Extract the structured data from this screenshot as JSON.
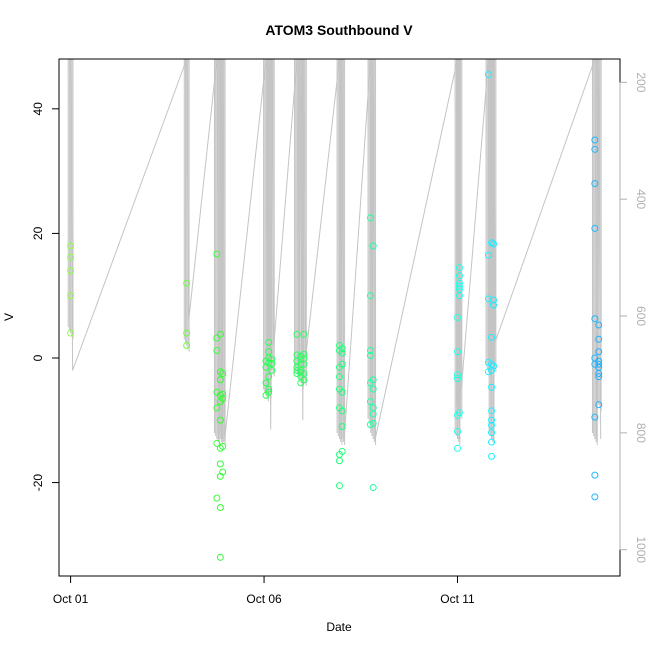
{
  "chart_data": {
    "type": "scatter",
    "title": "ATOM3 Southbound V",
    "xlabel": "Date",
    "ylabel": "V",
    "x_ticks": [
      {
        "day": 1,
        "label": "Oct 01"
      },
      {
        "day": 6,
        "label": "Oct 06"
      },
      {
        "day": 11,
        "label": "Oct 11"
      }
    ],
    "y_ticks": [
      -20,
      0,
      20,
      40
    ],
    "y_range": [
      -35,
      48
    ],
    "x_range_days": [
      0.7,
      15.2
    ],
    "right_axis": {
      "ticks": [
        200,
        400,
        600,
        800,
        1000
      ],
      "range": [
        160,
        1045
      ],
      "reversed": true,
      "color": "#b0b0b0"
    },
    "series": [
      {
        "x": 1.0,
        "color": "#8cff3c",
        "values": [
          18,
          16.2,
          14,
          10,
          4
        ]
      },
      {
        "x": 4.0,
        "color": "#6cff3c",
        "values": [
          12,
          4,
          2
        ]
      },
      {
        "x": 4.78,
        "color": "#3cff3c",
        "values": [
          16.7,
          3.2,
          1.2,
          -5.5,
          -8,
          -13.7,
          -22.5
        ]
      },
      {
        "x": 4.87,
        "color": "#30ff30",
        "values": [
          3.8,
          -2.2,
          -3.5,
          -6,
          -7,
          -10,
          -14.5,
          -17,
          -19,
          -24,
          -32
        ]
      },
      {
        "x": 4.93,
        "color": "#30ff30",
        "values": [
          -2.5,
          -5.8,
          -6.5,
          -14.2,
          -18.3
        ]
      },
      {
        "x": 6.05,
        "color": "#28ff50",
        "values": [
          -0.5,
          -1.5,
          -4,
          -6
        ]
      },
      {
        "x": 6.12,
        "color": "#28ff50",
        "values": [
          2.5,
          1,
          0,
          -0.8,
          -3,
          -5,
          -5.5
        ]
      },
      {
        "x": 6.2,
        "color": "#28ff50",
        "values": [
          -0.2,
          -0.9,
          -2
        ]
      },
      {
        "x": 6.85,
        "color": "#2aff60",
        "values": [
          3.8,
          0.5,
          -0.5,
          -1.5,
          -2,
          -2.5
        ]
      },
      {
        "x": 6.95,
        "color": "#2aff60",
        "values": [
          0.3,
          -0.2,
          -1,
          -2,
          -2.3,
          -3,
          -4
        ]
      },
      {
        "x": 7.03,
        "color": "#2aff60",
        "values": [
          3.8,
          0.6,
          -0.1,
          -1,
          -2.5,
          -3.5
        ]
      },
      {
        "x": 7.95,
        "color": "#20ff7a",
        "values": [
          2,
          1.2,
          -1.5,
          -3,
          -5,
          -8,
          -15.5,
          -16.5,
          -20.5
        ]
      },
      {
        "x": 8.02,
        "color": "#20ff7a",
        "values": [
          1.5,
          0.8,
          -1,
          -5.5,
          -11,
          -15,
          -8.5
        ]
      },
      {
        "x": 8.75,
        "color": "#20ffa0",
        "values": [
          22.5,
          10,
          1.2,
          0.4,
          -4,
          -7,
          -10.7
        ]
      },
      {
        "x": 8.82,
        "color": "#20ffa0",
        "values": [
          18,
          -3.5,
          -5,
          -8,
          -9,
          -10.5,
          -20.8
        ]
      },
      {
        "x": 11.0,
        "color": "#20ffe0",
        "values": [
          6.5,
          1,
          -2.7,
          -3.3,
          -9.2,
          -11.8,
          -14.5
        ]
      },
      {
        "x": 11.05,
        "color": "#20ffe8",
        "values": [
          14.5,
          13.2,
          12,
          11.5,
          11,
          10,
          -8.8
        ]
      },
      {
        "x": 11.8,
        "color": "#20f0ff",
        "values": [
          45.5,
          16.5,
          9.5,
          -0.7,
          -2.2
        ]
      },
      {
        "x": 11.88,
        "color": "#20ecff",
        "values": [
          18.5,
          3.3,
          -1,
          -2,
          -4.7,
          -8.5,
          -10,
          -10.8,
          -12,
          -13.5,
          -15.8
        ]
      },
      {
        "x": 11.93,
        "color": "#20e8ff",
        "values": [
          18.3,
          9.3,
          8.5,
          -1.3
        ]
      },
      {
        "x": 14.55,
        "color": "#20b8ff",
        "values": [
          35,
          33.5,
          28,
          20.8,
          6.3,
          0,
          -1,
          -9.5,
          -18.8,
          -22.3
        ]
      },
      {
        "x": 14.65,
        "color": "#20b0ff",
        "values": [
          5.3,
          3,
          1,
          -0.5,
          -1,
          -1.5,
          -2.5,
          -3,
          -7.5
        ]
      }
    ]
  }
}
